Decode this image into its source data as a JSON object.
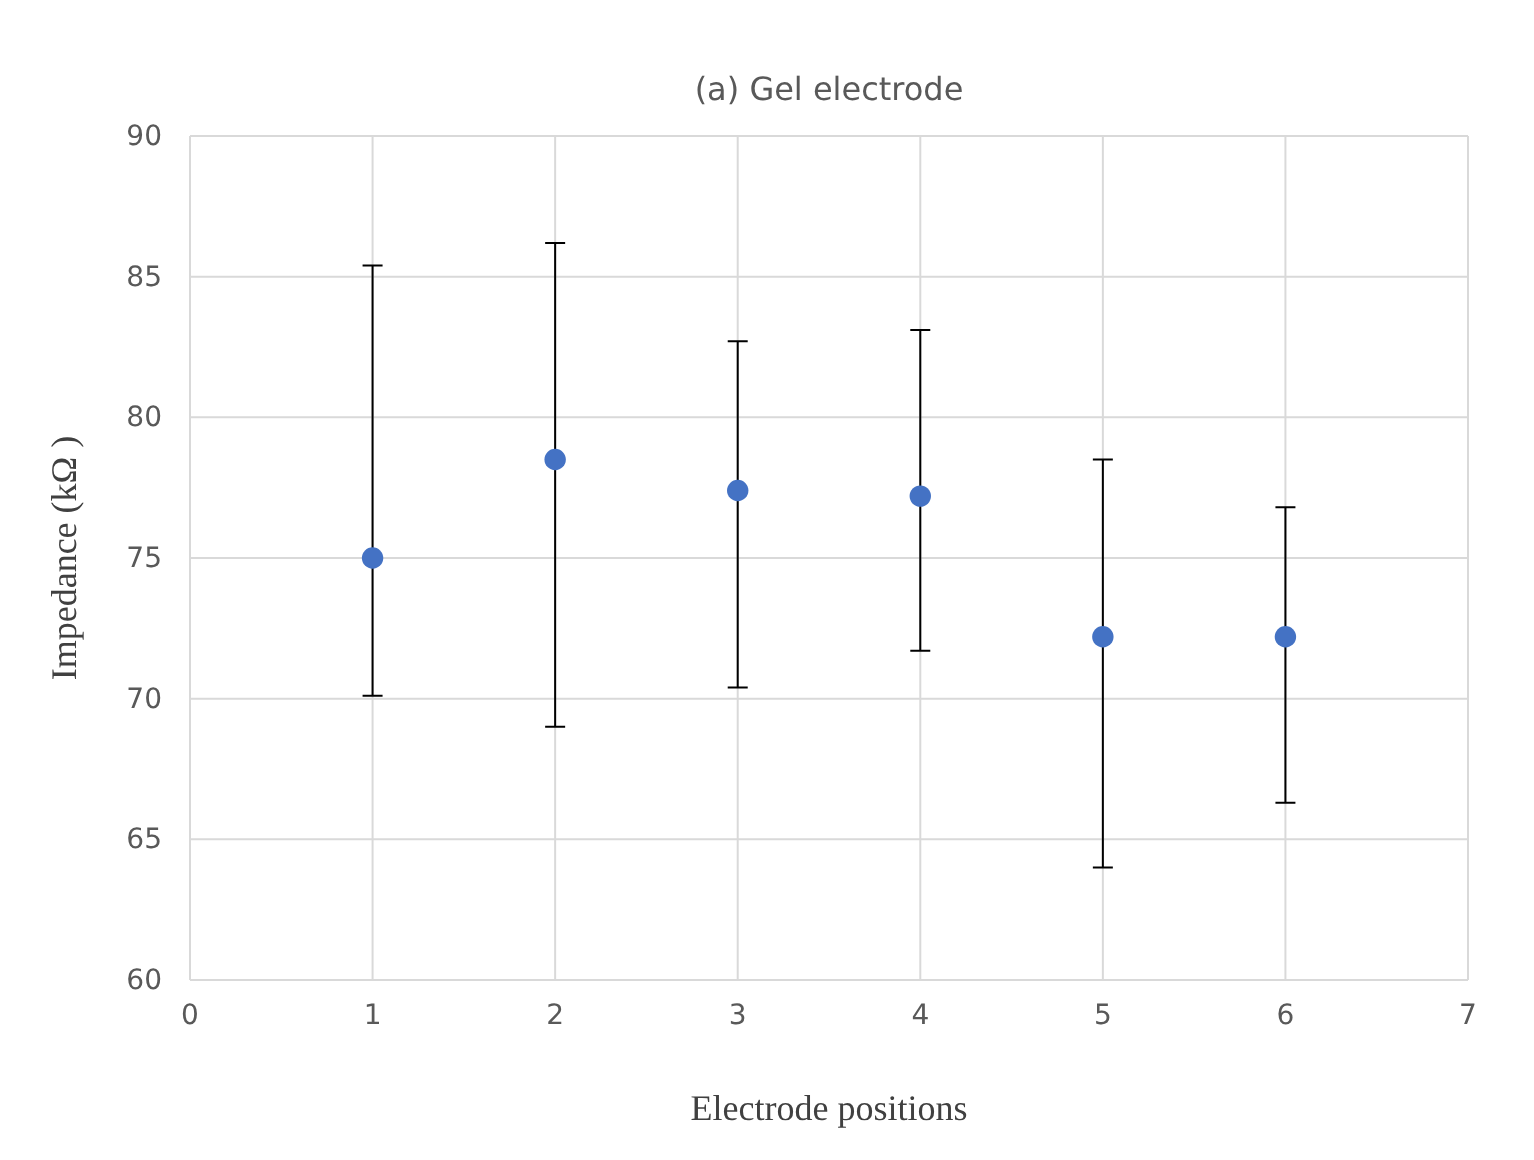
{
  "chart_data": {
    "type": "scatter",
    "title": "(a) Gel electrode",
    "xlabel": "Electrode positions",
    "ylabel": "Impedance (kΩ )",
    "x": [
      1,
      2,
      3,
      4,
      5,
      6
    ],
    "series": [
      {
        "color": "#4472c4",
        "values": [
          75.0,
          78.5,
          77.4,
          77.2,
          72.2,
          72.2
        ],
        "errors": [
          [
            70.1,
            85.4
          ],
          [
            69.0,
            86.2
          ],
          [
            70.4,
            82.7
          ],
          [
            71.7,
            83.1
          ],
          [
            64.0,
            78.5
          ],
          [
            66.3,
            76.8
          ]
        ]
      }
    ],
    "xlim": [
      0,
      7
    ],
    "xticks": [
      0,
      1,
      2,
      3,
      4,
      5,
      6,
      7
    ],
    "ylim": [
      60,
      90
    ],
    "yticks": [
      60,
      65,
      70,
      75,
      80,
      85,
      90
    ],
    "grid": true,
    "marker": "circle"
  }
}
